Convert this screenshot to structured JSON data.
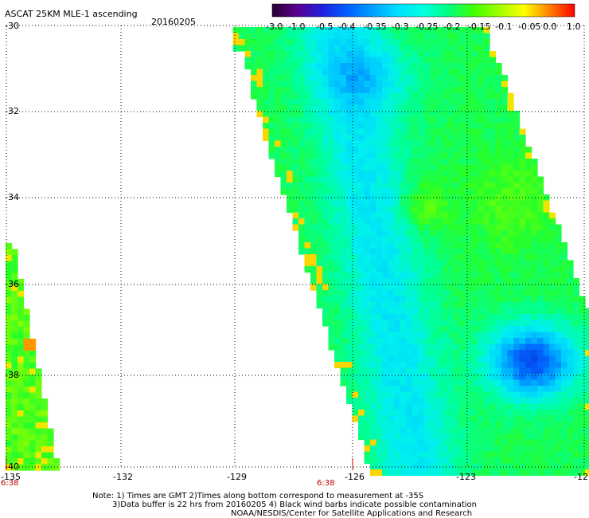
{
  "header": {
    "title": "ASCAT 25KM MLE-1 ascending",
    "date": "20160205"
  },
  "colorbar": {
    "labels": [
      "-3.0",
      "-1.0",
      "-0.5",
      "-0.4",
      "-0.35",
      "-0.3",
      "-0.25",
      "-0.2",
      "-0.15",
      "-0.1",
      "-0.05",
      "0.0",
      "1.0"
    ],
    "colors": [
      "#2a0030",
      "#5a0090",
      "#2020e0",
      "#0060ff",
      "#00a0ff",
      "#00e0ff",
      "#00ffe0",
      "#00ff80",
      "#40ff00",
      "#a0ff00",
      "#ffff00",
      "#ff8000",
      "#ff0000"
    ]
  },
  "axes": {
    "lat_labels": [
      "-30",
      "-32",
      "-34",
      "-36",
      "-38",
      "-40"
    ],
    "lon_labels": [
      "-135",
      "-132",
      "-129",
      "-126",
      "-123",
      "-12"
    ]
  },
  "time_labels": [
    "6:38",
    "6:38"
  ],
  "notes": {
    "line1": "Note: 1) Times are GMT 2)Times along bottom correspond to measurement at -35S",
    "line2": "3)Data buffer is 22 hrs from 20160205 4) Black wind barbs indicate possible contamination",
    "line3": "NOAA/NESDIS/Center for Satellite Applications and Research"
  }
}
